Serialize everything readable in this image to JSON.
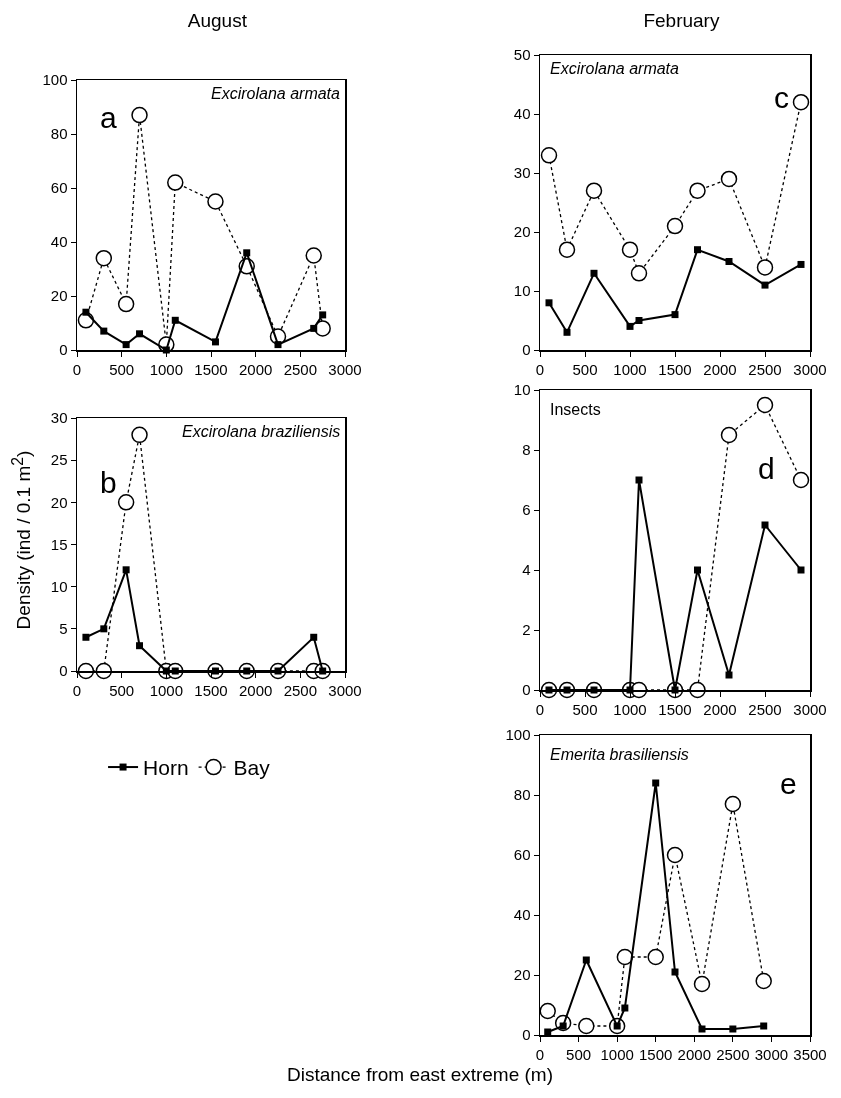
{
  "chart_data": [
    {
      "type": "line",
      "title": "August",
      "annotations": [
        "a",
        "Excirolana armata"
      ],
      "x": [
        100,
        300,
        550,
        700,
        1000,
        1100,
        1550,
        1900,
        2250,
        2650,
        2750
      ],
      "xlim": [
        0,
        3000
      ],
      "xticks": [
        0,
        500,
        1000,
        1500,
        2000,
        2500,
        3000
      ],
      "ylim": [
        0,
        100
      ],
      "yticks": [
        0,
        20,
        40,
        60,
        80,
        100
      ],
      "grid": false,
      "legend": false,
      "series": [
        {
          "color": "#000000",
          "marker": "square",
          "line_style": "solid",
          "values": [
            14,
            7,
            2,
            6,
            0,
            11,
            3,
            36,
            2,
            8,
            13
          ]
        },
        {
          "color": "#000000",
          "marker": "circle",
          "line_style": "dotted",
          "values": [
            11,
            34,
            17,
            87,
            2,
            62,
            55,
            31,
            5,
            35,
            8
          ]
        }
      ]
    },
    {
      "type": "line",
      "ylabel": "Density (ind / 0.1 m$^{2}$)",
      "annotations": [
        "b",
        "Excirolana braziliensis"
      ],
      "x": [
        100,
        300,
        550,
        700,
        1000,
        1100,
        1550,
        1900,
        2250,
        2650,
        2750
      ],
      "xlim": [
        0,
        3000
      ],
      "xticks": [
        0,
        500,
        1000,
        1500,
        2000,
        2500,
        3000
      ],
      "ylim": [
        0,
        30
      ],
      "yticks": [
        0,
        5,
        10,
        15,
        20,
        25,
        30
      ],
      "grid": false,
      "legend": "bottom",
      "series": [
        {
          "name": "Horn",
          "color": "#000000",
          "marker": "square",
          "line_style": "solid",
          "values": [
            4,
            5,
            12,
            3,
            0,
            0,
            0,
            0,
            0,
            4,
            0
          ]
        },
        {
          "name": "Bay",
          "color": "#000000",
          "marker": "circle",
          "line_style": "dotted",
          "values": [
            0,
            0,
            20,
            28,
            0,
            0,
            0,
            0,
            0,
            0,
            0
          ]
        }
      ]
    },
    {
      "type": "line",
      "title": "February",
      "annotations": [
        "c",
        "Excirolana armata"
      ],
      "x": [
        100,
        300,
        600,
        1000,
        1100,
        1500,
        1750,
        2100,
        2500,
        2900
      ],
      "xlim": [
        0,
        3000
      ],
      "xticks": [
        0,
        500,
        1000,
        1500,
        2000,
        2500,
        3000
      ],
      "ylim": [
        0,
        50
      ],
      "yticks": [
        0,
        10,
        20,
        30,
        40,
        50
      ],
      "grid": false,
      "legend": false,
      "series": [
        {
          "color": "#000000",
          "marker": "square",
          "line_style": "solid",
          "values": [
            8,
            3,
            13,
            4,
            5,
            6,
            17,
            15,
            11,
            14.5
          ]
        },
        {
          "color": "#000000",
          "marker": "circle",
          "line_style": "dotted",
          "values": [
            33,
            17,
            27,
            17,
            13,
            21,
            27,
            29,
            14,
            42
          ]
        }
      ]
    },
    {
      "type": "line",
      "annotations": [
        "d",
        "Insects"
      ],
      "x": [
        100,
        300,
        600,
        1000,
        1100,
        1500,
        1750,
        2100,
        2500,
        2900
      ],
      "xlim": [
        0,
        3000
      ],
      "xticks": [
        0,
        500,
        1000,
        1500,
        2000,
        2500,
        3000
      ],
      "ylim": [
        0,
        10
      ],
      "yticks": [
        0,
        2,
        4,
        6,
        8,
        10
      ],
      "grid": false,
      "legend": false,
      "series": [
        {
          "color": "#000000",
          "marker": "square",
          "line_style": "solid",
          "values": [
            0,
            0,
            0,
            0,
            7,
            0,
            4,
            0.5,
            5.5,
            4
          ]
        },
        {
          "color": "#000000",
          "marker": "circle",
          "line_style": "dotted",
          "values": [
            0,
            0,
            0,
            0,
            0,
            0,
            0,
            8.5,
            9.5,
            7
          ]
        }
      ]
    },
    {
      "type": "line",
      "xlabel": "Distance from east extreme (m)",
      "annotations": [
        "e",
        "Emerita brasiliensis"
      ],
      "x": [
        100,
        300,
        600,
        1000,
        1100,
        1500,
        1750,
        2100,
        2500,
        2900
      ],
      "xlim": [
        0,
        3500
      ],
      "xticks": [
        0,
        500,
        1000,
        1500,
        2000,
        2500,
        3000,
        3500
      ],
      "ylim": [
        0,
        100
      ],
      "yticks": [
        0,
        20,
        40,
        60,
        80,
        100
      ],
      "grid": false,
      "legend": false,
      "series": [
        {
          "color": "#000000",
          "marker": "square",
          "line_style": "solid",
          "values": [
            1,
            3,
            25,
            3,
            9,
            84,
            21,
            2,
            2,
            3
          ]
        },
        {
          "color": "#000000",
          "marker": "circle",
          "line_style": "dotted",
          "values": [
            8,
            4,
            3,
            3,
            26,
            26,
            60,
            17,
            77,
            18
          ]
        }
      ]
    }
  ]
}
